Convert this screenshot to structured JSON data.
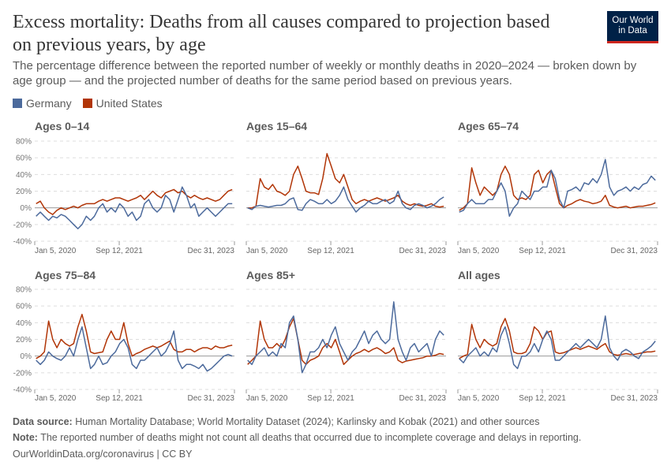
{
  "header": {
    "title": "Excess mortality: Deaths from all causes compared to projection based on previous years, by age",
    "subtitle": "The percentage difference between the reported number of weekly or monthly deaths in 2020–2024 — broken down by age group — and the projected number of deaths for the same period based on previous years.",
    "logo_line1": "Our World",
    "logo_line2": "in Data"
  },
  "footer": {
    "source_label": "Data source:",
    "source_text": " Human Mortality Database; World Mortality Dataset (2024); Karlinsky and Kobak (2021) and other sources",
    "note_label": "Note:",
    "note_text": " The reported number of deaths might not count all deaths that occurred due to incomplete coverage and delays in reporting.",
    "link": "OurWorldinData.org/coronavirus | CC BY"
  },
  "colors": {
    "Germany": "#4C6A9C",
    "United States": "#B13507"
  },
  "chart_data": {
    "type": "line",
    "legend": [
      "Germany",
      "United States"
    ],
    "legend_placement": "top-left",
    "ylim": [
      -40,
      80
    ],
    "yticks": [
      "80%",
      "60%",
      "40%",
      "20%",
      "0%",
      "-20%",
      "-40%"
    ],
    "ytick_values": [
      80,
      60,
      40,
      20,
      0,
      -20,
      -40
    ],
    "xticks": [
      "Jan 5, 2020",
      "Sep 12, 2021",
      "Dec 31, 2023"
    ],
    "xtick_dates": [
      "2020-01-05",
      "2021-09-12",
      "2023-12-31"
    ],
    "grid": "horizontal dashed",
    "x": [
      "2020-01",
      "2020-02",
      "2020-03",
      "2020-04",
      "2020-05",
      "2020-06",
      "2020-07",
      "2020-08",
      "2020-09",
      "2020-10",
      "2020-11",
      "2020-12",
      "2021-01",
      "2021-02",
      "2021-03",
      "2021-04",
      "2021-05",
      "2021-06",
      "2021-07",
      "2021-08",
      "2021-09",
      "2021-10",
      "2021-11",
      "2021-12",
      "2022-01",
      "2022-02",
      "2022-03",
      "2022-04",
      "2022-05",
      "2022-06",
      "2022-07",
      "2022-08",
      "2022-09",
      "2022-10",
      "2022-11",
      "2022-12",
      "2023-01",
      "2023-02",
      "2023-03",
      "2023-04",
      "2023-05",
      "2023-06",
      "2023-07",
      "2023-08",
      "2023-09",
      "2023-10",
      "2023-11",
      "2023-12"
    ],
    "panels": [
      {
        "title": "Ages 0–14",
        "series": [
          {
            "name": "Germany",
            "values": [
              -10,
              -5,
              -10,
              -15,
              -10,
              -12,
              -8,
              -10,
              -15,
              -20,
              -25,
              -20,
              -10,
              -15,
              -10,
              0,
              5,
              -5,
              0,
              -5,
              5,
              0,
              -10,
              -5,
              -15,
              -10,
              5,
              10,
              0,
              -5,
              0,
              15,
              10,
              -5,
              10,
              25,
              15,
              0,
              5,
              -10,
              -5,
              0,
              -5,
              -10,
              -5,
              0,
              5,
              5
            ]
          },
          {
            "name": "United States",
            "values": [
              5,
              8,
              0,
              -5,
              -8,
              -3,
              0,
              -2,
              0,
              2,
              0,
              3,
              5,
              5,
              5,
              8,
              10,
              8,
              10,
              12,
              12,
              10,
              8,
              10,
              12,
              15,
              10,
              15,
              20,
              15,
              12,
              18,
              20,
              22,
              18,
              20,
              15,
              12,
              15,
              12,
              10,
              12,
              10,
              8,
              10,
              15,
              20,
              22
            ]
          }
        ]
      },
      {
        "title": "Ages 15–64",
        "series": [
          {
            "name": "Germany",
            "values": [
              0,
              -2,
              2,
              3,
              2,
              1,
              2,
              3,
              3,
              5,
              10,
              12,
              -2,
              -3,
              5,
              10,
              8,
              5,
              5,
              10,
              5,
              8,
              15,
              25,
              10,
              2,
              -5,
              0,
              3,
              8,
              5,
              5,
              8,
              10,
              5,
              8,
              20,
              5,
              0,
              -2,
              3,
              5,
              3,
              0,
              2,
              5,
              10,
              13
            ]
          },
          {
            "name": "United States",
            "values": [
              0,
              0,
              2,
              35,
              25,
              22,
              28,
              20,
              18,
              15,
              20,
              40,
              50,
              35,
              20,
              18,
              18,
              16,
              35,
              65,
              50,
              35,
              30,
              40,
              25,
              10,
              5,
              8,
              10,
              8,
              10,
              12,
              10,
              8,
              10,
              12,
              15,
              8,
              5,
              3,
              5,
              3,
              2,
              3,
              5,
              2,
              1,
              2
            ]
          }
        ]
      },
      {
        "title": "Ages 65–74",
        "series": [
          {
            "name": "Germany",
            "values": [
              -5,
              -3,
              5,
              10,
              5,
              5,
              5,
              10,
              10,
              20,
              30,
              20,
              -10,
              0,
              5,
              20,
              15,
              10,
              20,
              20,
              25,
              25,
              45,
              35,
              10,
              0,
              20,
              22,
              25,
              20,
              30,
              28,
              35,
              30,
              40,
              58,
              25,
              15,
              20,
              22,
              25,
              20,
              25,
              22,
              28,
              30,
              38,
              33
            ]
          },
          {
            "name": "United States",
            "values": [
              -3,
              0,
              5,
              48,
              30,
              15,
              25,
              20,
              15,
              20,
              40,
              50,
              40,
              15,
              10,
              12,
              10,
              15,
              40,
              45,
              30,
              40,
              45,
              25,
              5,
              0,
              3,
              5,
              8,
              10,
              8,
              7,
              5,
              6,
              8,
              15,
              3,
              1,
              0,
              1,
              2,
              0,
              1,
              2,
              2,
              3,
              4,
              6
            ]
          }
        ]
      },
      {
        "title": "Ages 75–84",
        "series": [
          {
            "name": "Germany",
            "values": [
              -5,
              -10,
              -5,
              5,
              0,
              -3,
              -5,
              0,
              10,
              0,
              20,
              35,
              10,
              -15,
              -10,
              0,
              -10,
              -8,
              0,
              5,
              15,
              20,
              10,
              -10,
              -15,
              -5,
              -5,
              0,
              5,
              10,
              0,
              5,
              15,
              30,
              -5,
              -15,
              -10,
              -10,
              -12,
              -15,
              -10,
              -18,
              -15,
              -10,
              -5,
              0,
              2,
              0
            ]
          },
          {
            "name": "United States",
            "values": [
              -3,
              0,
              5,
              42,
              20,
              10,
              20,
              15,
              12,
              15,
              35,
              50,
              30,
              5,
              3,
              4,
              5,
              20,
              30,
              20,
              20,
              40,
              15,
              0,
              3,
              5,
              8,
              10,
              12,
              10,
              12,
              15,
              18,
              8,
              5,
              5,
              8,
              8,
              5,
              8,
              10,
              10,
              8,
              12,
              10,
              10,
              12,
              13
            ]
          }
        ]
      },
      {
        "title": "Ages 85+",
        "series": [
          {
            "name": "Germany",
            "values": [
              -5,
              -10,
              0,
              5,
              10,
              0,
              5,
              0,
              15,
              10,
              40,
              48,
              20,
              -20,
              -10,
              5,
              5,
              10,
              20,
              10,
              25,
              35,
              15,
              5,
              -5,
              5,
              10,
              20,
              30,
              15,
              25,
              30,
              20,
              15,
              20,
              65,
              20,
              5,
              -5,
              10,
              15,
              5,
              10,
              15,
              0,
              20,
              30,
              25
            ]
          },
          {
            "name": "United States",
            "values": [
              -10,
              -5,
              0,
              42,
              20,
              10,
              10,
              15,
              10,
              20,
              35,
              45,
              20,
              -5,
              -10,
              -5,
              -3,
              0,
              10,
              15,
              10,
              20,
              5,
              -10,
              -5,
              0,
              3,
              5,
              8,
              5,
              8,
              10,
              7,
              3,
              5,
              10,
              -5,
              -8,
              -6,
              -5,
              -4,
              -3,
              -2,
              0,
              0,
              1,
              3,
              2
            ]
          }
        ]
      },
      {
        "title": "All ages",
        "series": [
          {
            "name": "Germany",
            "values": [
              -3,
              -8,
              0,
              5,
              10,
              0,
              5,
              0,
              10,
              5,
              25,
              35,
              15,
              -10,
              -15,
              0,
              0,
              5,
              15,
              5,
              20,
              30,
              20,
              -5,
              -5,
              0,
              5,
              10,
              15,
              10,
              15,
              20,
              15,
              10,
              20,
              48,
              10,
              0,
              -5,
              5,
              8,
              5,
              0,
              -3,
              5,
              8,
              12,
              18
            ]
          },
          {
            "name": "United States",
            "values": [
              -3,
              0,
              2,
              38,
              20,
              10,
              20,
              15,
              12,
              15,
              35,
              45,
              30,
              5,
              3,
              3,
              5,
              15,
              35,
              30,
              20,
              28,
              30,
              5,
              3,
              4,
              6,
              8,
              10,
              8,
              10,
              12,
              10,
              8,
              12,
              15,
              5,
              2,
              1,
              2,
              3,
              2,
              2,
              3,
              4,
              5,
              5,
              6
            ]
          }
        ]
      }
    ]
  }
}
